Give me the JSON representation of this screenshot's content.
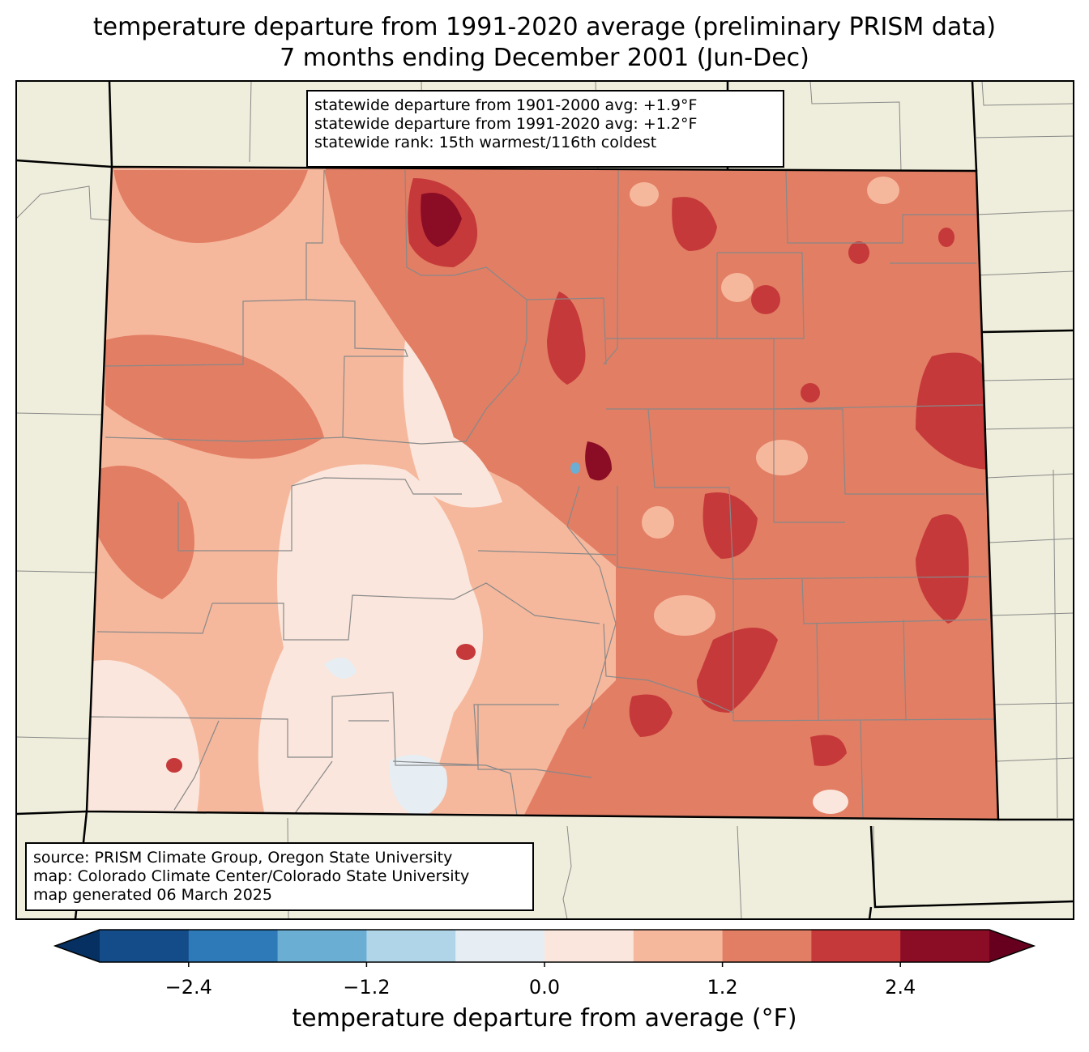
{
  "title": {
    "line1": "temperature departure from 1991-2020 average (preliminary PRISM data)",
    "line2": "7 months ending December 2001 (Jun-Dec)"
  },
  "stats_box": {
    "line1": "statewide departure from 1901-2000 avg: +1.9°F",
    "line2": "statewide departure from 1991-2020 avg: +1.2°F",
    "line3": "statewide rank: 15th warmest/116th coldest"
  },
  "source_box": {
    "line1": "source: PRISM Climate Group, Oregon State University",
    "line2": "map: Colorado Climate Center/Colorado State University",
    "line3": "map generated 06 March 2025"
  },
  "colorbar": {
    "label": "temperature departure from average (°F)",
    "boundaries": [
      -3.0,
      -2.4,
      -1.8,
      -1.2,
      -0.6,
      0.0,
      0.6,
      1.2,
      1.8,
      2.4,
      3.0
    ],
    "colors": [
      "#134c88",
      "#2e7ab8",
      "#6aaed3",
      "#b1d5e8",
      "#e6eef4",
      "#fae6dc",
      "#f6b89d",
      "#e27e64",
      "#c6393a",
      "#8b0d25"
    ],
    "under_color": "#053061",
    "over_color": "#67001f",
    "ticks": [
      -2.4,
      -1.2,
      0.0,
      1.2,
      2.4
    ],
    "tick_labels": [
      "−2.4",
      "−1.2",
      "0.0",
      "1.2",
      "2.4"
    ]
  },
  "map": {
    "state": "Colorado",
    "background_color": "#efeedc",
    "county_line_color": "#888888",
    "dominant_anomaly_east": 1.5,
    "dominant_anomaly_west": 0.9
  }
}
